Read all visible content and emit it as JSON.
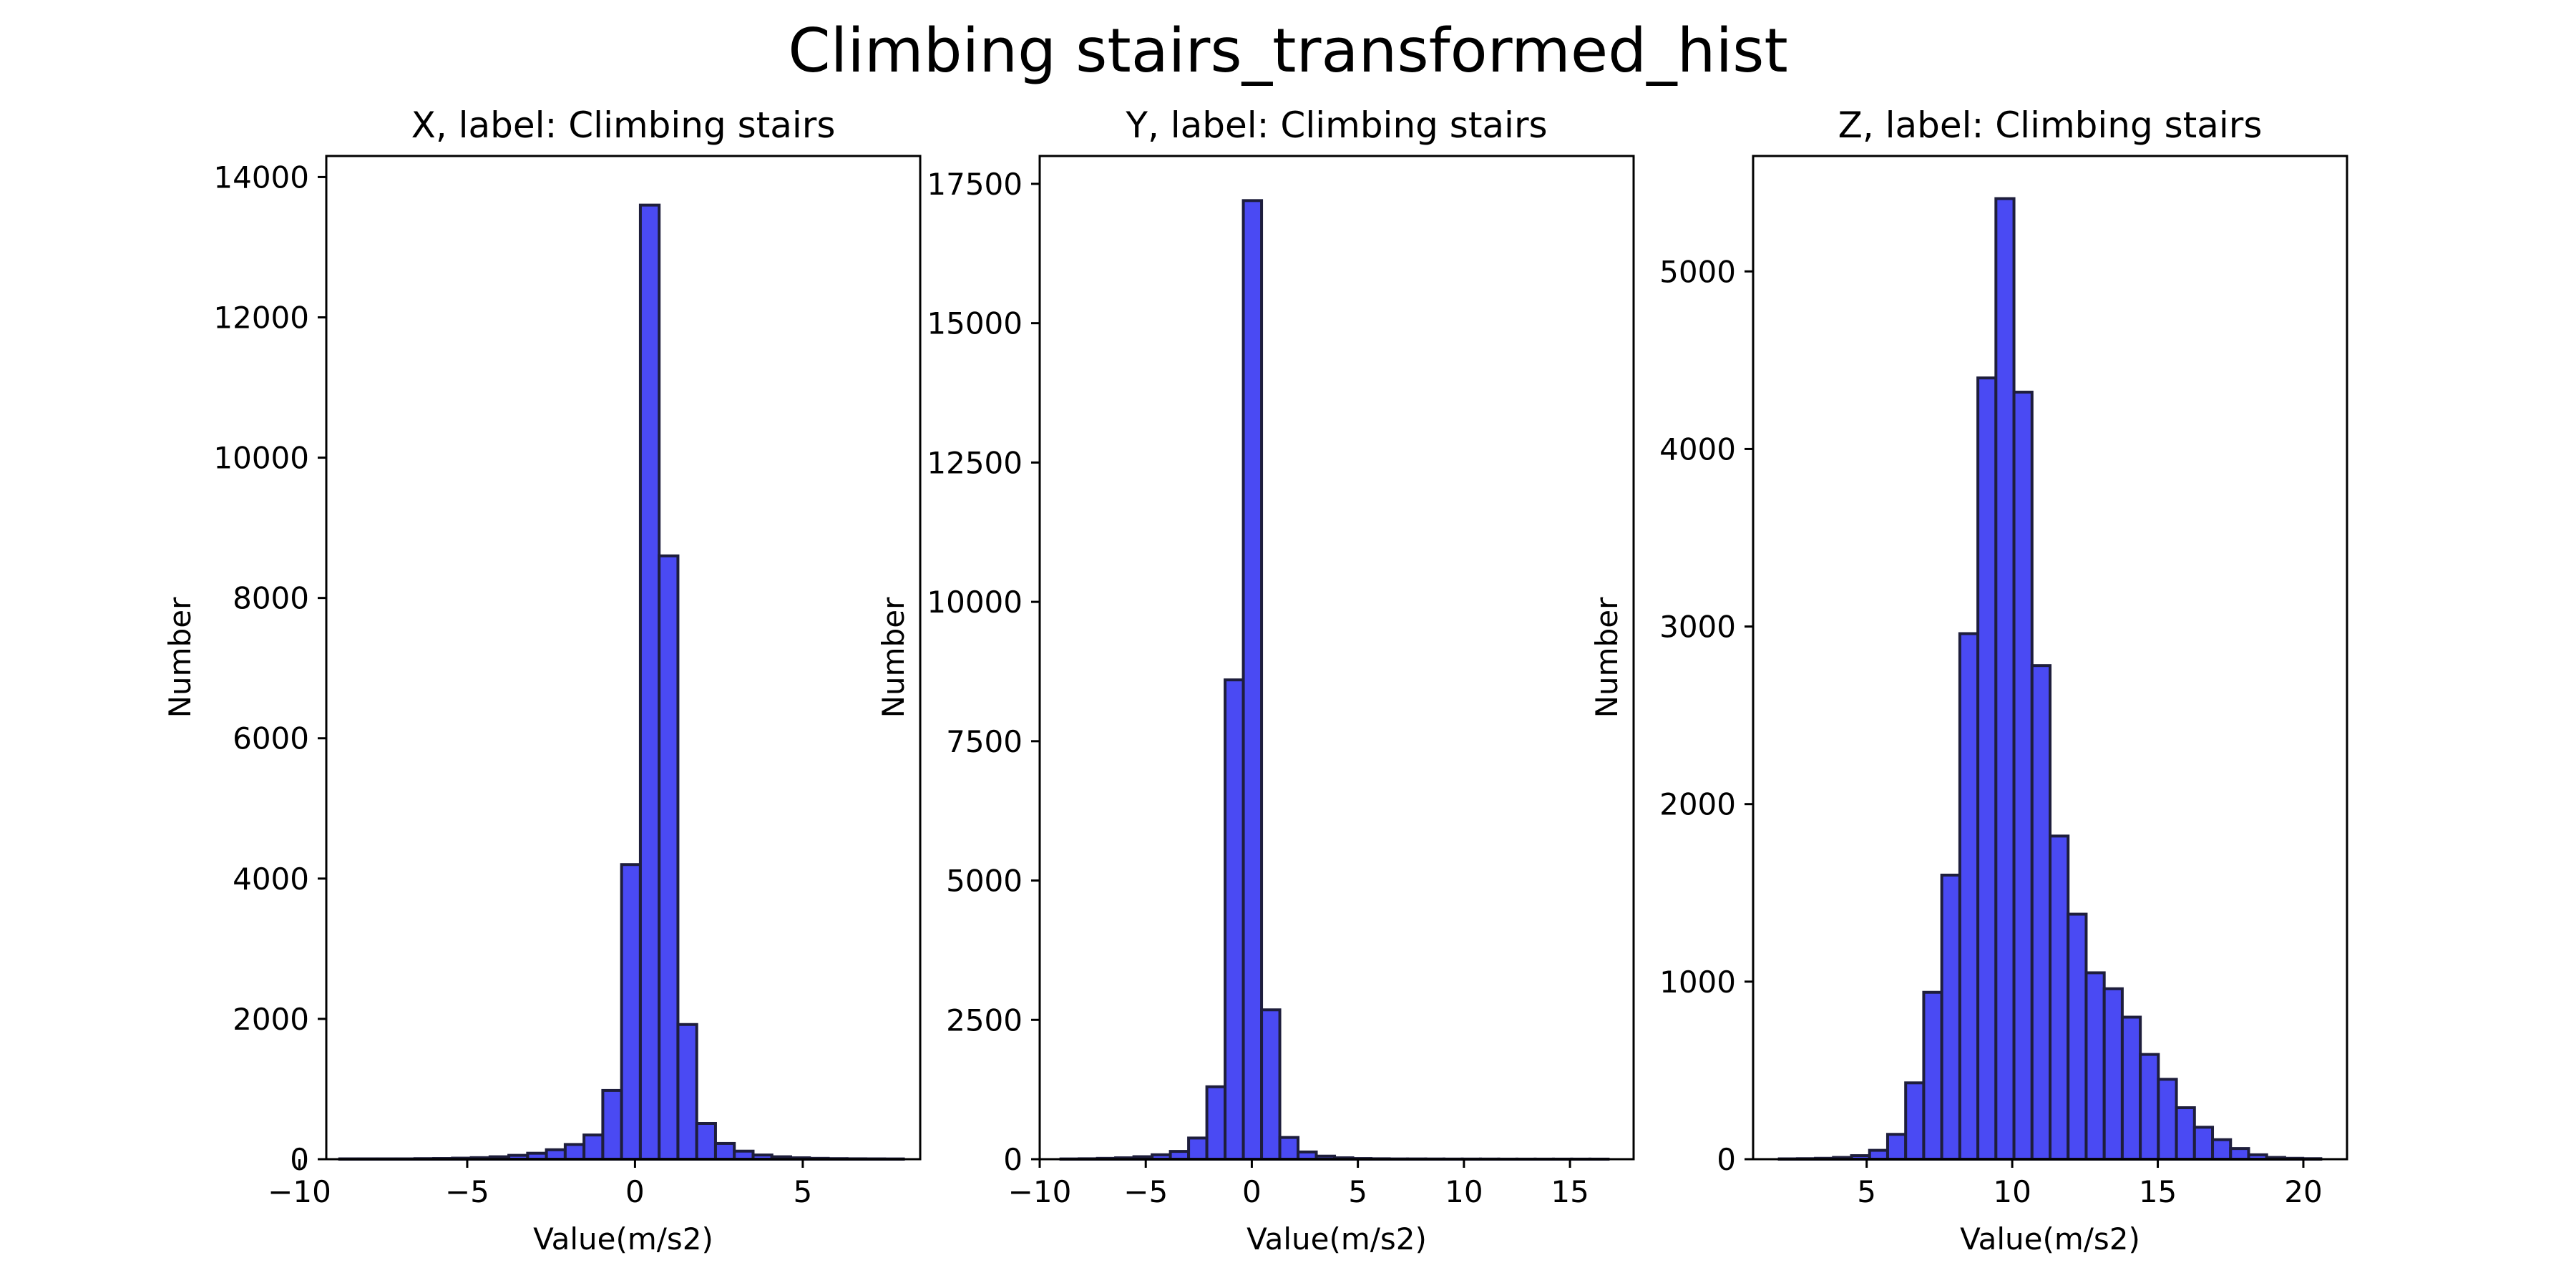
{
  "figure": {
    "title": "Climbing stairs_transformed_hist"
  },
  "chart_data": [
    {
      "type": "bar",
      "title": "X, label: Climbing stairs",
      "xlabel": "Value(m/s2)",
      "ylabel": "Number",
      "xlim": [
        -9.2,
        8.5
      ],
      "ylim": [
        0,
        14300
      ],
      "xticks": [
        -10,
        -5,
        0,
        5
      ],
      "yticks": [
        0,
        2000,
        4000,
        6000,
        8000,
        10000,
        12000,
        14000
      ],
      "bin_start": -8.8,
      "bin_width": 0.56,
      "values": [
        5,
        5,
        5,
        5,
        8,
        10,
        15,
        22,
        35,
        55,
        85,
        135,
        210,
        345,
        980,
        4200,
        13600,
        8600,
        1920,
        510,
        225,
        115,
        60,
        35,
        20,
        12,
        8,
        6,
        5,
        4
      ],
      "bar_color": "#4a4af3",
      "grid": false
    },
    {
      "type": "bar",
      "title": "Y, label: Climbing stairs",
      "xlabel": "Value(m/s2)",
      "ylabel": "Number",
      "xlim": [
        -10,
        18
      ],
      "ylim": [
        0,
        18000
      ],
      "xticks": [
        -10,
        -5,
        0,
        5,
        10,
        15
      ],
      "yticks": [
        0,
        2500,
        5000,
        7500,
        10000,
        12500,
        15000,
        17500
      ],
      "bin_start": -9.0,
      "bin_width": 0.86,
      "values": [
        5,
        8,
        15,
        25,
        45,
        80,
        140,
        380,
        1300,
        8600,
        17200,
        2680,
        390,
        130,
        55,
        25,
        12,
        8,
        5,
        5,
        4,
        3,
        3,
        3,
        2,
        2,
        2,
        2,
        2,
        2
      ],
      "bar_color": "#4a4af3",
      "grid": false
    },
    {
      "type": "bar",
      "title": "Z, label: Climbing stairs",
      "xlabel": "Value(m/s2)",
      "ylabel": "Number",
      "xlim": [
        1.1,
        21.5
      ],
      "ylim": [
        0,
        5650
      ],
      "xticks": [
        5,
        10,
        15,
        20
      ],
      "yticks": [
        0,
        1000,
        2000,
        3000,
        4000,
        5000
      ],
      "bin_start": 2.0,
      "bin_width": 0.62,
      "values": [
        2,
        3,
        5,
        10,
        20,
        50,
        140,
        430,
        940,
        1600,
        2960,
        4400,
        5410,
        4320,
        2780,
        1820,
        1380,
        1050,
        960,
        800,
        590,
        450,
        290,
        180,
        110,
        60,
        25,
        10,
        5,
        3
      ],
      "bar_color": "#4a4af3",
      "grid": false
    }
  ]
}
